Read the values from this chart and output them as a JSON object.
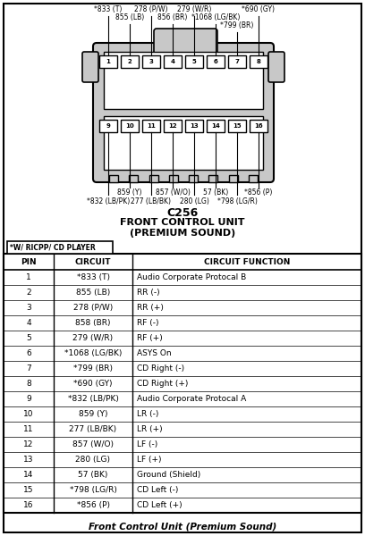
{
  "title_connector": "C256",
  "title_unit": "FRONT CONTROL UNIT",
  "title_sound": "(PREMIUM SOUND)",
  "note_label": "*W/ RICPP/ CD PLAYER",
  "table_headers": [
    "PIN",
    "CIRCUIT",
    "CIRCUIT FUNCTION"
  ],
  "table_rows": [
    [
      "1",
      "*833 (T)",
      "Audio Corporate Protocal B"
    ],
    [
      "2",
      "855 (LB)",
      "RR (-)"
    ],
    [
      "3",
      "278 (P/W)",
      "RR (+)"
    ],
    [
      "4",
      "858 (BR)",
      "RF (-)"
    ],
    [
      "5",
      "279 (W/R)",
      "RF (+)"
    ],
    [
      "6",
      "*1068 (LG/BK)",
      "ASYS On"
    ],
    [
      "7",
      "*799 (BR)",
      "CD Right (-)"
    ],
    [
      "8",
      "*690 (GY)",
      "CD Right (+)"
    ],
    [
      "9",
      "*832 (LB/PK)",
      "Audio Corporate Protocal A"
    ],
    [
      "10",
      "859 (Y)",
      "LR (-)"
    ],
    [
      "11",
      "277 (LB/BK)",
      "LR (+)"
    ],
    [
      "12",
      "857 (W/O)",
      "LF (-)"
    ],
    [
      "13",
      "280 (LG)",
      "LF (+)"
    ],
    [
      "14",
      "57 (BK)",
      "Ground (Shield)"
    ],
    [
      "15",
      "*798 (LG/R)",
      "CD Left (-)"
    ],
    [
      "16",
      "*856 (P)",
      "CD Left (+)"
    ]
  ],
  "footer_text": "Front Control Unit (Premium Sound)",
  "bg_color": "#ffffff",
  "connector_fill": "#c8c8c8",
  "border_color": "#000000"
}
